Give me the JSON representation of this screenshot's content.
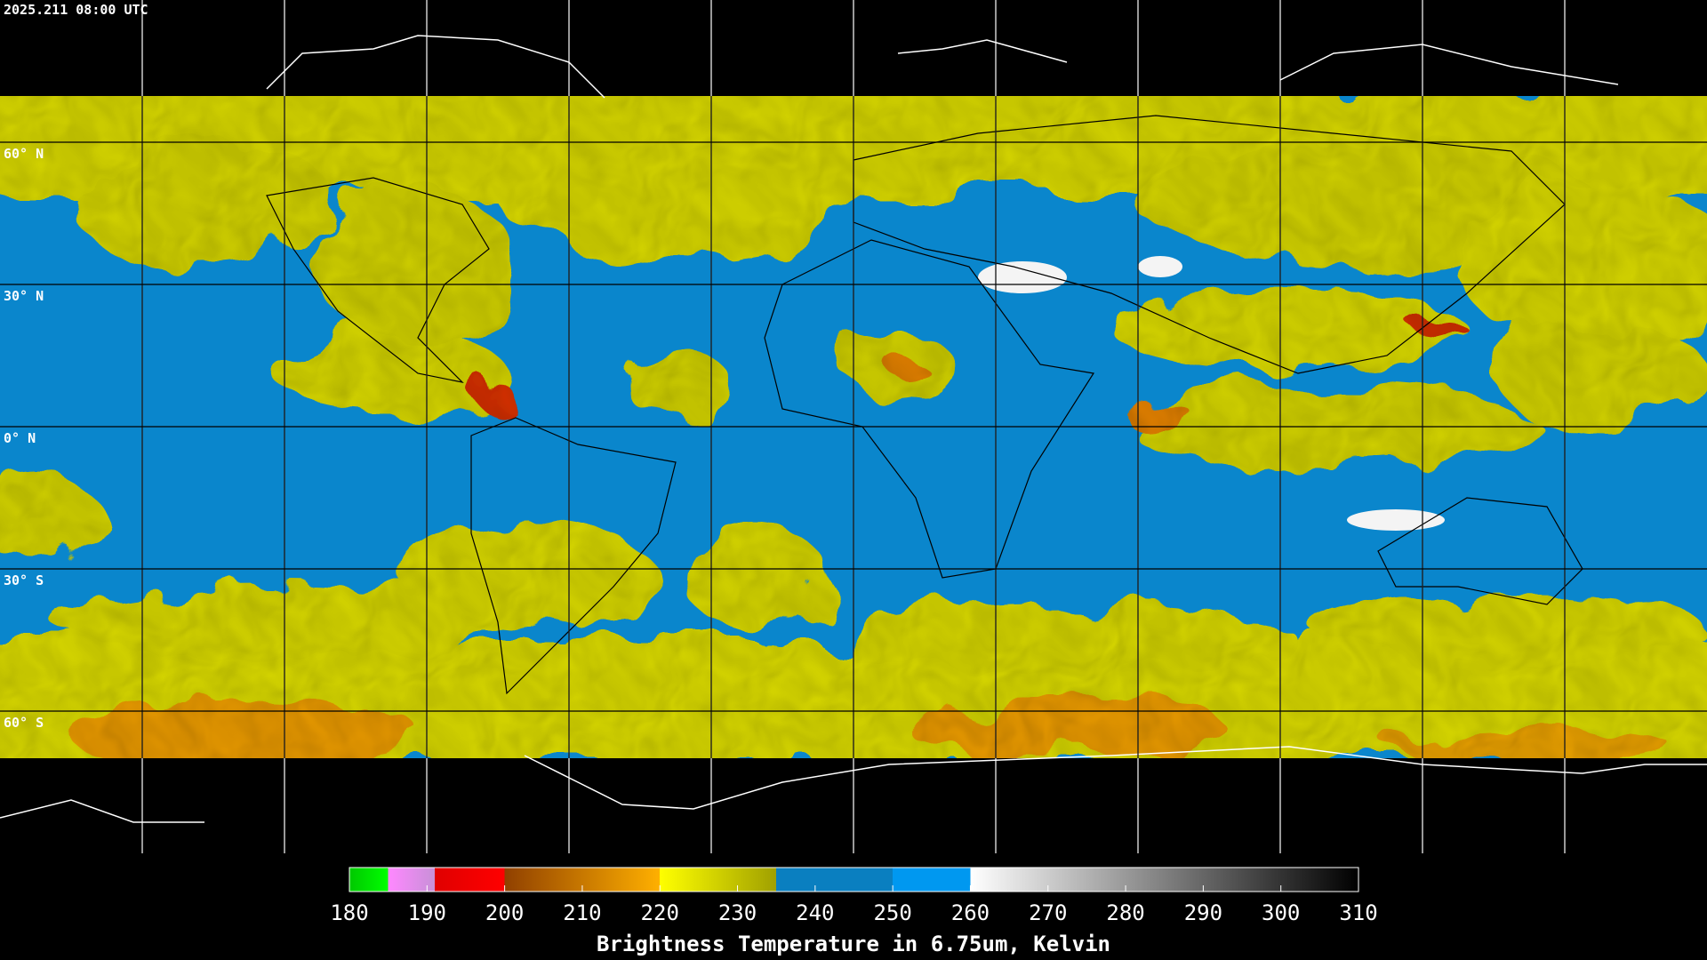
{
  "header": {
    "timestamp": "2025.211 08:00 UTC"
  },
  "lat_labels": [
    "60° N",
    "30° N",
    "0° N",
    "30° S",
    "60° S"
  ],
  "colorbar": {
    "ticks": [
      180,
      190,
      200,
      210,
      220,
      230,
      240,
      250,
      260,
      270,
      280,
      290,
      300,
      310
    ],
    "title": "Brightness Temperature in 6.75um, Kelvin"
  }
}
